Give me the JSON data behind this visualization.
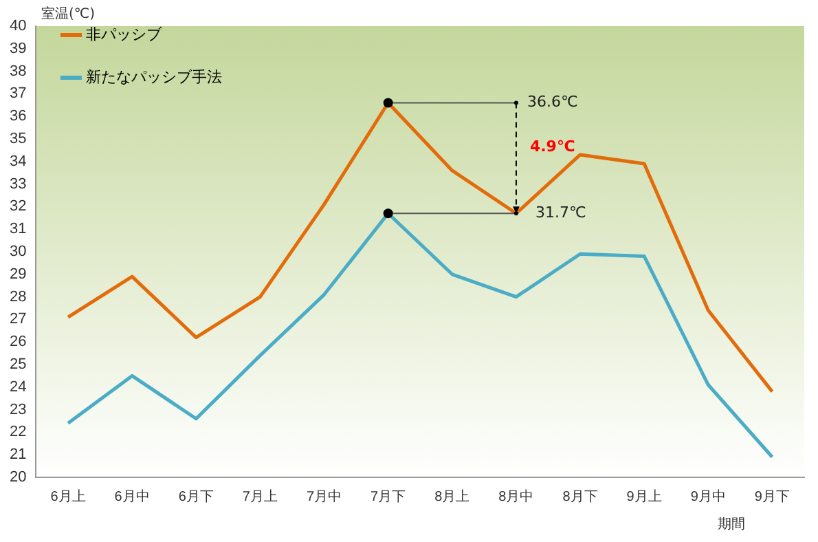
{
  "chart_data": {
    "type": "line",
    "ylabel": "室温(℃)",
    "xlabel": "期間",
    "categories": [
      "6月上",
      "6月中",
      "6月下",
      "7月上",
      "7月中",
      "7月下",
      "8月上",
      "8月中",
      "8月下",
      "9月上",
      "9月中",
      "9月下"
    ],
    "series": [
      {
        "name": "非パッシブ",
        "color": "#e36c0a",
        "values": [
          27.1,
          28.9,
          26.2,
          28.0,
          32.1,
          36.6,
          33.6,
          31.7,
          34.3,
          33.9,
          27.4,
          23.8
        ]
      },
      {
        "name": "新たなパッシブ手法",
        "color": "#4bacc6",
        "values": [
          22.4,
          24.5,
          22.6,
          25.4,
          28.1,
          31.7,
          29.0,
          28.0,
          29.9,
          29.8,
          24.1,
          20.9
        ]
      }
    ],
    "ylim": [
      20,
      40
    ],
    "yticks": [
      20,
      21,
      22,
      23,
      24,
      25,
      26,
      27,
      28,
      29,
      30,
      31,
      32,
      33,
      34,
      35,
      36,
      37,
      38,
      39,
      40
    ],
    "annotations": [
      {
        "text": "36.6℃",
        "x": "7月下",
        "y": 36.6
      },
      {
        "text": "31.7℃",
        "x": "7月下",
        "y": 31.7
      },
      "4.9℃"
    ],
    "grid": false,
    "legend": "top left",
    "marker": "none",
    "line_style": "solid"
  }
}
